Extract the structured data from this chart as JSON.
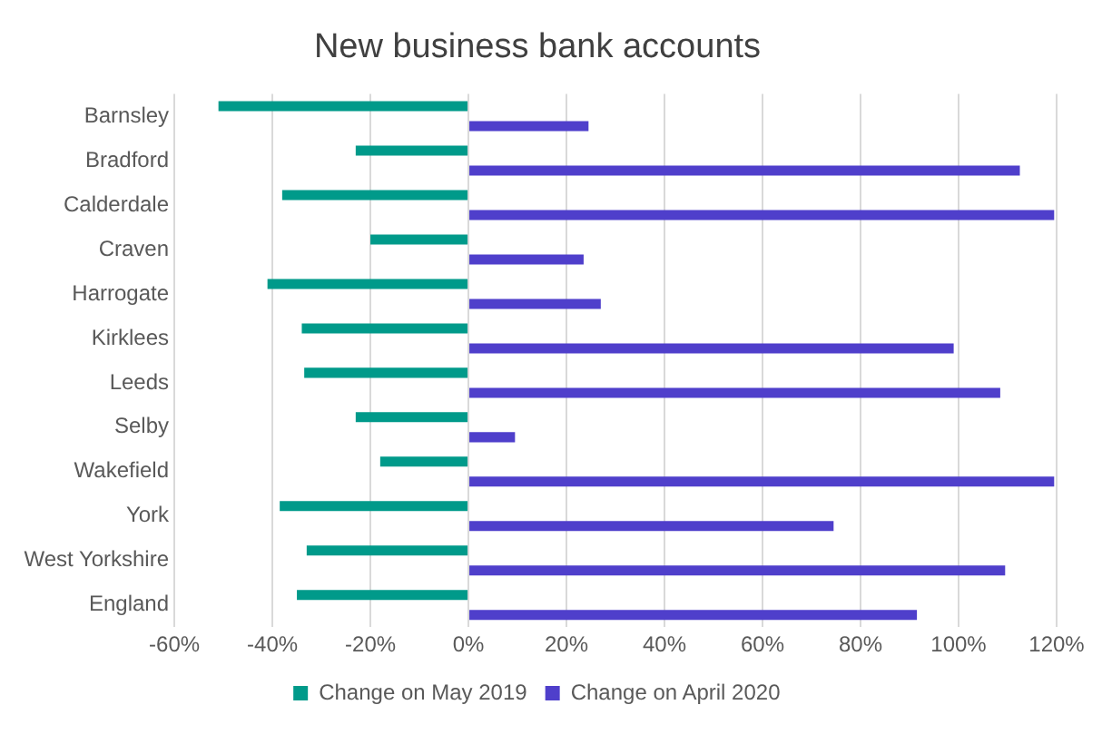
{
  "chart_data": {
    "type": "bar",
    "orientation": "horizontal",
    "title": "New business bank accounts",
    "categories": [
      "Barnsley",
      "Bradford",
      "Calderdale",
      "Craven",
      "Harrogate",
      "Kirklees",
      "Leeds",
      "Selby",
      "Wakefield",
      "York",
      "West Yorkshire",
      "England"
    ],
    "series": [
      {
        "name": "Change on May 2019",
        "color": "#009a8a",
        "values": [
          -51,
          -23,
          -38,
          -20,
          -41,
          -34,
          -33.5,
          -23,
          -18,
          -38.5,
          -33,
          -35
        ]
      },
      {
        "name": "Change on April 2020",
        "color": "#4f3fcb",
        "values": [
          24.5,
          112.5,
          119.5,
          23.5,
          27,
          99,
          108.5,
          9.5,
          119.5,
          74.5,
          109.5,
          91.5
        ]
      }
    ],
    "xlim": [
      -60,
      120
    ],
    "xticks": [
      {
        "value": -60,
        "label": "-60%"
      },
      {
        "value": -40,
        "label": "-40%"
      },
      {
        "value": -20,
        "label": "-20%"
      },
      {
        "value": 0,
        "label": "0%"
      },
      {
        "value": 20,
        "label": "20%"
      },
      {
        "value": 40,
        "label": "40%"
      },
      {
        "value": 60,
        "label": "60%"
      },
      {
        "value": 80,
        "label": "80%"
      },
      {
        "value": 100,
        "label": "100%"
      },
      {
        "value": 120,
        "label": "120%"
      }
    ],
    "grid": "x",
    "legend": "bottom"
  }
}
